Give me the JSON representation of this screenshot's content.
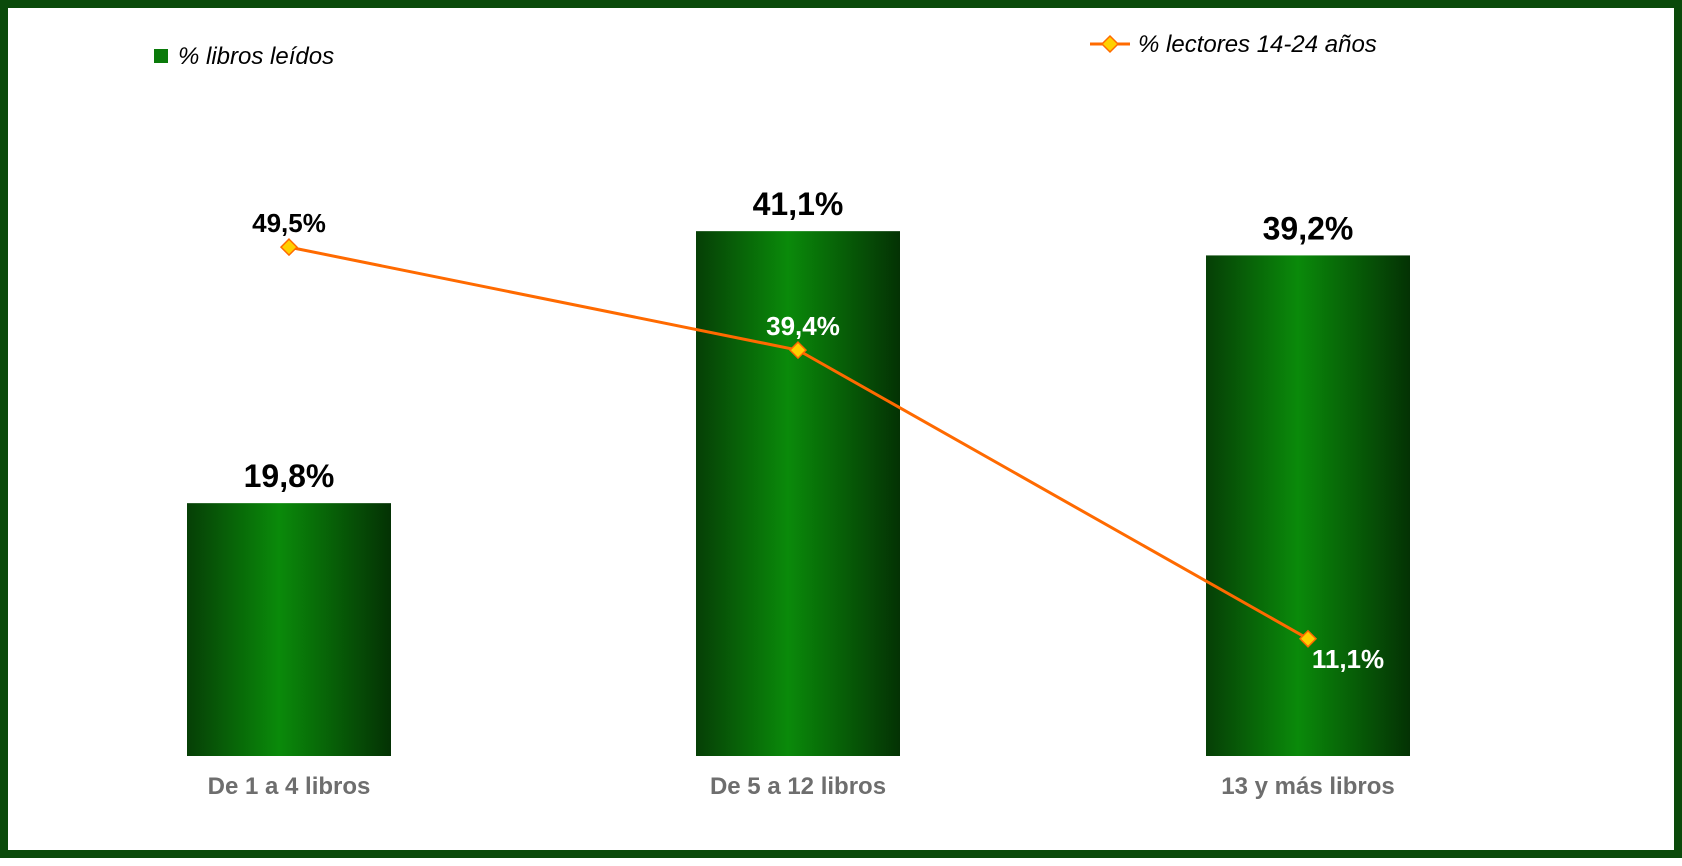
{
  "chart_data": {
    "type": "bar",
    "categories": [
      "De 1 a 4 libros",
      "De 5 a 12 libros",
      "13 y más libros"
    ],
    "series": [
      {
        "name": "% libros leídos",
        "type": "bar",
        "values": [
          19.8,
          41.1,
          39.2
        ],
        "labels": [
          "19,8%",
          "41,1%",
          "39,2%"
        ],
        "color": "#0a7a0a"
      },
      {
        "name": "% lectores 14-24 años",
        "type": "line",
        "values": [
          49.5,
          39.4,
          11.1
        ],
        "labels": [
          "49,5%",
          "39,4%",
          "11,1%"
        ],
        "color": "#ff6a00",
        "marker_color": "#ffd000"
      }
    ],
    "legend_position": "top",
    "grid": false
  }
}
